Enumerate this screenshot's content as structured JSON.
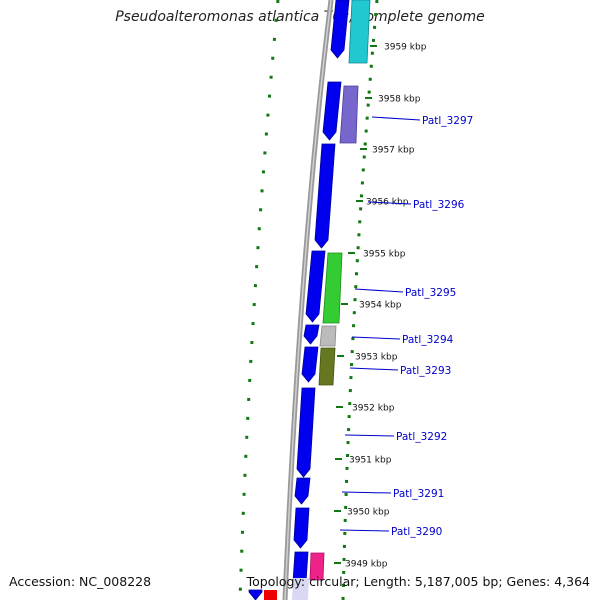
{
  "title": "Pseudoalteromonas atlantica T6c, complete genome",
  "accession_text": "Accession: NC_008228",
  "stats_text": "Topology: circular; Length: 5,187,005 bp; Genes: 4,364",
  "scale_unit": "kbp",
  "ticks": [
    {
      "kbp": 3959,
      "label": "3959 kbp"
    },
    {
      "kbp": 3958,
      "label": "3958 kbp"
    },
    {
      "kbp": 3957,
      "label": "3957 kbp"
    },
    {
      "kbp": 3956,
      "label": "3956 kbp"
    },
    {
      "kbp": 3955,
      "label": "3955 kbp"
    },
    {
      "kbp": 3954,
      "label": "3954 kbp"
    },
    {
      "kbp": 3953,
      "label": "3953 kbp"
    },
    {
      "kbp": 3952,
      "label": "3952 kbp"
    },
    {
      "kbp": 3951,
      "label": "3951 kbp"
    },
    {
      "kbp": 3950,
      "label": "3950 kbp"
    },
    {
      "kbp": 3949,
      "label": "3949 kbp"
    }
  ],
  "gene_labels": [
    "Patl_3297",
    "Patl_3296",
    "Patl_3295",
    "Patl_3294",
    "Patl_3293",
    "Patl_3292",
    "Patl_3291",
    "Patl_3290"
  ],
  "colors": {
    "cds": "#0000ee",
    "label": "#0000cc",
    "backbone": "#888888",
    "gc_dots": "#117711",
    "cyan": "#22c8d0",
    "purple": "#7766cc",
    "green": "#33cc33",
    "gray": "#bbbbbb",
    "olive": "#667722",
    "pink": "#ee2288",
    "red": "#ee0000",
    "lavender": "#c8c8f0"
  }
}
